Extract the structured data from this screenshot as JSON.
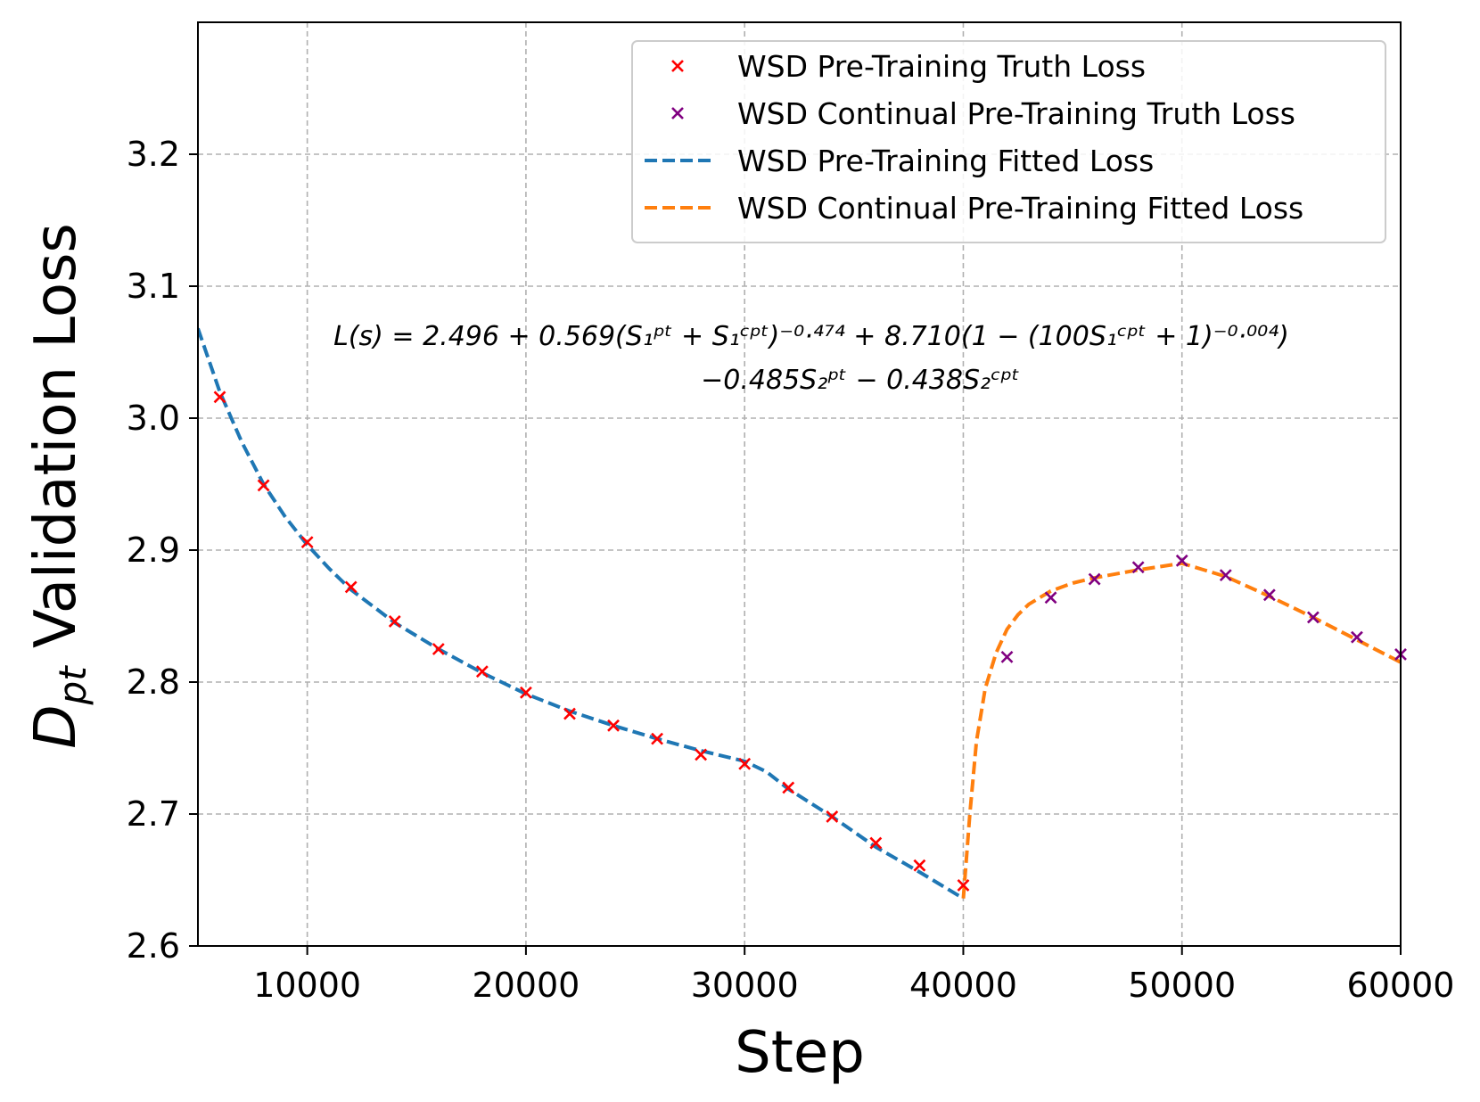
{
  "chart_data": {
    "type": "line",
    "title": "",
    "xlabel": "Step",
    "ylabel_main": "D",
    "ylabel_sub": "pt",
    "ylabel_rest": " Validation Loss",
    "xlim": [
      5000,
      60000
    ],
    "ylim": [
      2.6,
      3.3
    ],
    "xticks": [
      10000,
      20000,
      30000,
      40000,
      50000,
      60000
    ],
    "xtick_labels": [
      "10000",
      "20000",
      "30000",
      "40000",
      "50000",
      "60000"
    ],
    "yticks": [
      2.6,
      2.7,
      2.8,
      2.9,
      3.0,
      3.1,
      3.2
    ],
    "ytick_labels": [
      "2.6",
      "2.7",
      "2.8",
      "2.9",
      "3.0",
      "3.1",
      "3.2"
    ],
    "grid": true,
    "legend_position": "top-right",
    "colors": {
      "pt_truth": "#ff0000",
      "cpt_truth": "#800080",
      "pt_fit": "#1f77b4",
      "cpt_fit": "#ff7f0e",
      "grid": "#b0b0b0"
    },
    "series": [
      {
        "name": "WSD Pre-Training Truth Loss",
        "kind": "marker",
        "color_key": "pt_truth",
        "x": [
          6000,
          8000,
          10000,
          12000,
          14000,
          16000,
          18000,
          20000,
          22000,
          24000,
          26000,
          28000,
          30000,
          32000,
          34000,
          36000,
          38000,
          40000
        ],
        "y": [
          3.016,
          2.949,
          2.906,
          2.872,
          2.846,
          2.825,
          2.808,
          2.792,
          2.776,
          2.767,
          2.757,
          2.745,
          2.738,
          2.72,
          2.698,
          2.678,
          2.661,
          2.646
        ]
      },
      {
        "name": "WSD Continual Pre-Training Truth Loss",
        "kind": "marker",
        "color_key": "cpt_truth",
        "x": [
          42000,
          44000,
          46000,
          48000,
          50000,
          52000,
          54000,
          56000,
          58000,
          60000
        ],
        "y": [
          2.819,
          2.864,
          2.878,
          2.887,
          2.892,
          2.881,
          2.866,
          2.849,
          2.834,
          2.821
        ]
      },
      {
        "name": "WSD Pre-Training Fitted Loss",
        "kind": "dashed-line",
        "color_key": "pt_fit",
        "x": [
          5000,
          6000,
          7000,
          8000,
          9000,
          10000,
          11000,
          12000,
          14000,
          16000,
          18000,
          20000,
          22000,
          24000,
          26000,
          28000,
          29000,
          30000,
          31000,
          32000,
          34000,
          36000,
          38000,
          40000
        ],
        "y": [
          3.068,
          3.02,
          2.982,
          2.95,
          2.925,
          2.904,
          2.886,
          2.87,
          2.845,
          2.825,
          2.807,
          2.791,
          2.778,
          2.767,
          2.757,
          2.748,
          2.744,
          2.74,
          2.732,
          2.719,
          2.698,
          2.675,
          2.656,
          2.636
        ]
      },
      {
        "name": "WSD Continual Pre-Training Fitted Loss",
        "kind": "dashed-line",
        "color_key": "cpt_fit",
        "x": [
          40000,
          40300,
          40600,
          41000,
          41500,
          42000,
          42500,
          43000,
          44000,
          45000,
          46000,
          48000,
          50000,
          52000,
          54000,
          56000,
          58000,
          60000
        ],
        "y": [
          2.636,
          2.7,
          2.755,
          2.795,
          2.822,
          2.84,
          2.851,
          2.859,
          2.869,
          2.875,
          2.879,
          2.885,
          2.89,
          2.88,
          2.865,
          2.849,
          2.832,
          2.815
        ]
      }
    ],
    "annotations": {
      "formula_line1": "L(s) = 2.496 + 0.569(S₁ᵖᵗ + S₁ᶜᵖᵗ)⁻⁰·⁴⁷⁴ + 8.710(1 − (100S₁ᶜᵖᵗ + 1)⁻⁰·⁰⁰⁴)",
      "formula_line2": "−0.485S₂ᵖᵗ − 0.438S₂ᶜᵖᵗ"
    }
  }
}
